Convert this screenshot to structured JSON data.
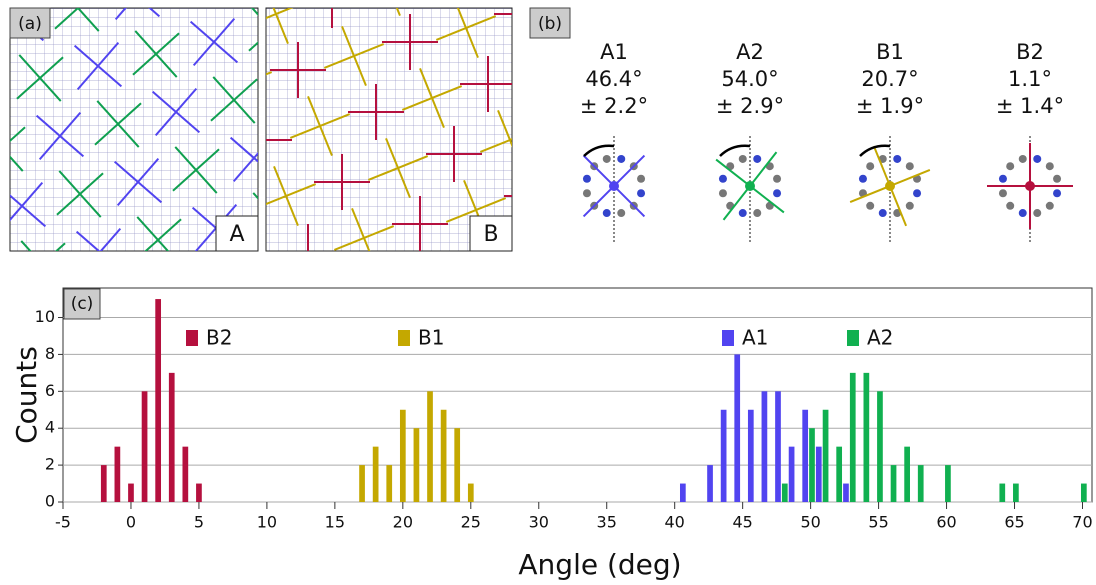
{
  "panels": {
    "a": {
      "label": "(a)",
      "tiles": [
        "A",
        "B"
      ]
    },
    "b": {
      "label": "(b)",
      "molecules": [
        {
          "name": "A1",
          "angle": "46.4°",
          "error": "±  2.2°"
        },
        {
          "name": "A2",
          "angle": "54.0°",
          "error": "±  2.9°"
        },
        {
          "name": "B1",
          "angle": "20.7°",
          "error": "±  1.9°"
        },
        {
          "name": "B2",
          "angle": "1.1°",
          "error": "±  1.4°"
        }
      ]
    },
    "c": {
      "label": "(c)"
    }
  },
  "chart_data": {
    "type": "bar",
    "x_label": "Angle (deg)",
    "y_label": "Counts",
    "xlim": [
      -5,
      70.7
    ],
    "ylim": [
      0,
      11.6
    ],
    "xticks": [
      -5,
      0,
      5,
      10,
      15,
      20,
      25,
      30,
      35,
      40,
      45,
      50,
      55,
      60,
      65,
      70
    ],
    "yticks": [
      0,
      2,
      4,
      6,
      8,
      10
    ],
    "grid": true,
    "series": [
      {
        "name": "B2",
        "color": "#b5103e",
        "x": [
          -2,
          -1,
          0,
          1,
          2,
          3,
          4,
          5
        ],
        "values": [
          2,
          3,
          1,
          6,
          11,
          7,
          3,
          1
        ]
      },
      {
        "name": "B1",
        "color": "#c4a800",
        "x": [
          17,
          18,
          19,
          20,
          21,
          22,
          23,
          24,
          25
        ],
        "values": [
          2,
          3,
          2,
          5,
          4,
          6,
          5,
          4,
          1
        ]
      },
      {
        "name": "A1",
        "color": "#5144f0",
        "x": [
          41,
          43,
          44,
          45,
          46,
          47,
          48,
          49,
          50,
          51,
          53
        ],
        "values": [
          1,
          2,
          5,
          8,
          5,
          6,
          6,
          3,
          5,
          3,
          1
        ]
      },
      {
        "name": "A2",
        "color": "#10b050",
        "x": [
          48,
          50,
          51,
          52,
          53,
          54,
          55,
          56,
          57,
          58,
          60,
          64,
          65,
          70
        ],
        "values": [
          1,
          4,
          5,
          3,
          7,
          7,
          6,
          2,
          3,
          2,
          2,
          1,
          1,
          1
        ]
      }
    ]
  }
}
